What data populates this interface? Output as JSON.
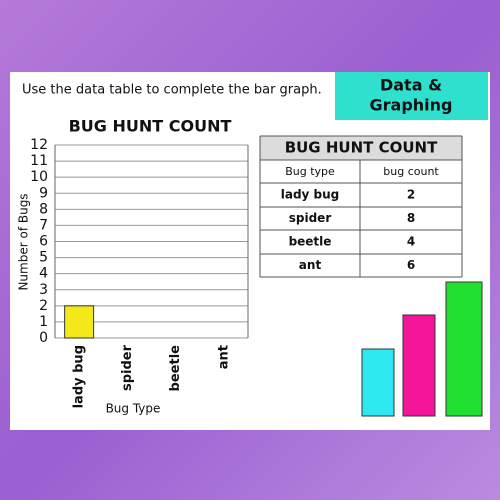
{
  "instruction": "Use the data table to complete the bar graph.",
  "badge": {
    "line1": "Data &",
    "line2": "Graphing"
  },
  "chart_data": {
    "type": "bar",
    "title": "BUG HUNT COUNT",
    "categories": [
      "lady bug",
      "spider",
      "beetle",
      "ant"
    ],
    "values": [
      2,
      null,
      null,
      null
    ],
    "color": "#f4e81a",
    "ylim": [
      0,
      12
    ],
    "yticks": [
      0,
      1,
      2,
      3,
      4,
      5,
      6,
      7,
      8,
      9,
      10,
      11,
      12
    ],
    "grid": true,
    "y_label": "Number of Bugs",
    "x_label": "Bug Type"
  },
  "table": {
    "title": "BUG HUNT COUNT",
    "headers": [
      "Bug type",
      "bug count"
    ],
    "rows": [
      [
        "lady bug",
        2
      ],
      [
        "spider",
        8
      ],
      [
        "beetle",
        4
      ],
      [
        "ant",
        6
      ]
    ]
  }
}
